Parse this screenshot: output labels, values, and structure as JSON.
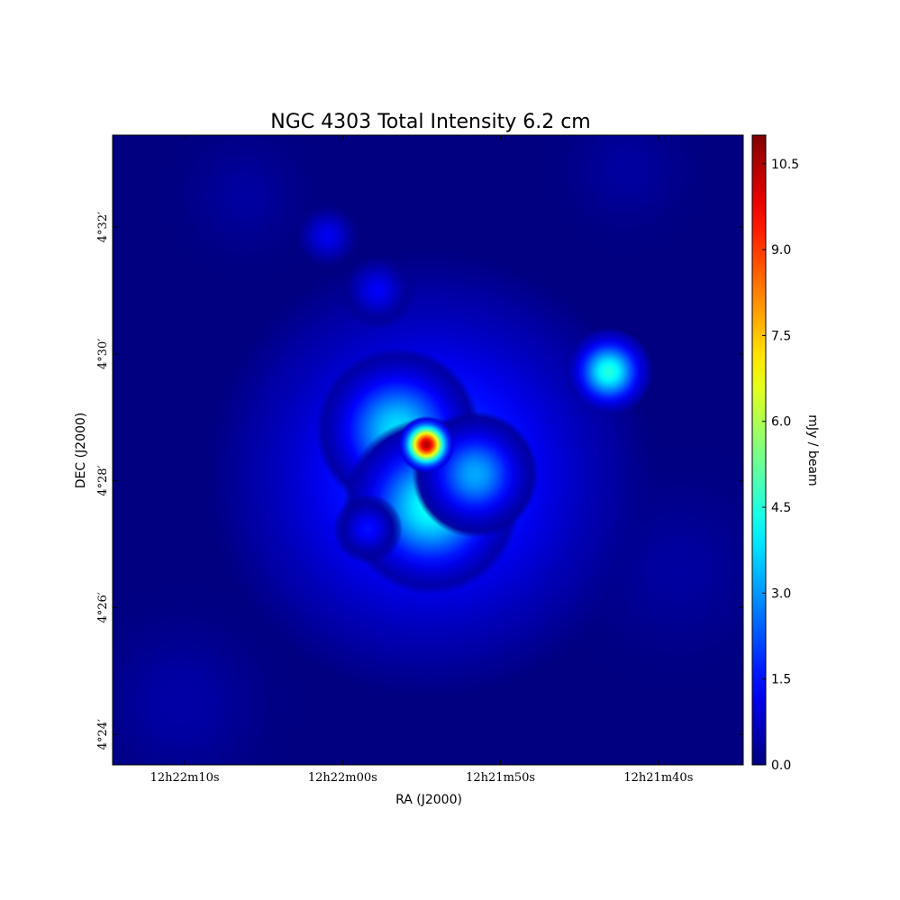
{
  "chart_data": {
    "type": "image",
    "title": "NGC 4303 Total Intensity 6.2 cm",
    "x_label": "RA (J2000)",
    "y_label": "DEC (J2000)",
    "colorbar_label": "mJy / beam",
    "xlim": [
      1334.57,
      1294.63
    ],
    "xticks": [
      {
        "value": 1330,
        "label": "12h22m10s"
      },
      {
        "value": 1320,
        "label": "12h22m00s"
      },
      {
        "value": 1310,
        "label": "12h21m50s"
      },
      {
        "value": 1300,
        "label": "12h21m40s"
      }
    ],
    "ylim": [
      263.52,
      273.45
    ],
    "yticks": [
      {
        "value": 264,
        "label": "4°24′"
      },
      {
        "value": 266,
        "label": "4°26′"
      },
      {
        "value": 268,
        "label": "4°28′"
      },
      {
        "value": 270,
        "label": "4°30′"
      },
      {
        "value": 272,
        "label": "4°32′"
      }
    ],
    "clim": [
      0,
      11.0
    ],
    "cticks": [
      {
        "value": 0,
        "label": "0.0"
      },
      1.5,
      {
        "value": 3,
        "label": "3.0"
      },
      4.5,
      {
        "value": 6,
        "label": "6.0"
      },
      7.5,
      {
        "value": 9,
        "label": "9.0"
      },
      10.5
    ],
    "colormap": "jet",
    "sources": [
      {
        "ra": 1330.2,
        "dec": 264.5,
        "peak": 0.4,
        "fwhm": 2.4
      },
      {
        "ra": 1298.8,
        "dec": 266.6,
        "peak": 0.35,
        "fwhm": 2.6
      },
      {
        "ra": 1302.0,
        "dec": 272.9,
        "peak": 0.35,
        "fwhm": 1.8
      },
      {
        "ra": 1326.2,
        "dec": 272.5,
        "peak": 0.35,
        "fwhm": 1.8
      },
      {
        "ra": 1315.5,
        "dec": 267.3,
        "peak": 0.6,
        "fwhm": 2.0
      },
      {
        "ra": 1314.5,
        "dec": 268.1,
        "peak": 2.3,
        "fwhm": 3.6
      },
      {
        "ra": 1316.5,
        "dec": 268.8,
        "peak": 3.8,
        "fwhm": 1.3
      },
      {
        "ra": 1314.4,
        "dec": 267.6,
        "peak": 4.3,
        "fwhm": 1.4
      },
      {
        "ra": 1311.6,
        "dec": 268.1,
        "peak": 3.2,
        "fwhm": 1.0
      },
      {
        "ra": 1320.97,
        "dec": 271.86,
        "peak": 1.2,
        "fwhm": 0.55
      },
      {
        "ra": 1317.8,
        "dec": 271.0,
        "peak": 1.3,
        "fwhm": 0.6
      },
      {
        "ra": 1318.4,
        "dec": 267.24,
        "peak": 1.5,
        "fwhm": 0.55
      },
      {
        "ra": 1303.14,
        "dec": 269.72,
        "peak": 4.5,
        "fwhm": 0.7
      },
      {
        "ra": 1314.7,
        "dec": 268.57,
        "peak": 10.5,
        "fwhm": 0.45
      }
    ]
  }
}
